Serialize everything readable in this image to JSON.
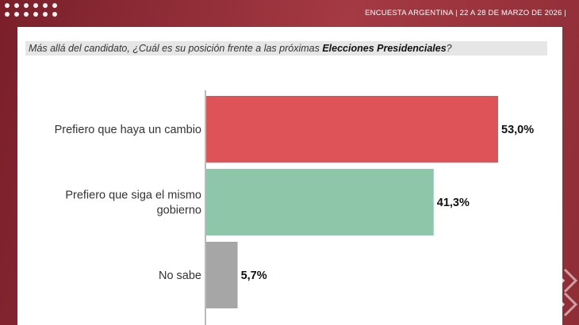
{
  "header": {
    "survey_title": "ENCUESTA ARGENTINA | 22 A 28 DE MARZO DE 2026  |"
  },
  "question": {
    "prefix": "Más allá del candidato, ¿Cuál es su posición frente a las próximas ",
    "emphasis": "Elecciones Presidenciales",
    "suffix": "?"
  },
  "colors": {
    "frame": "#8a2a33",
    "cambio": "#dd5358",
    "mismo_gobierno": "#8ec6a9",
    "no_sabe": "#a6a6a6",
    "question_bg": "#e6e6e6"
  },
  "chart_data": {
    "type": "bar",
    "orientation": "horizontal",
    "categories": [
      "Prefiero que haya un cambio",
      "Prefiero que siga el mismo gobierno",
      "No sabe"
    ],
    "values": [
      53.0,
      41.3,
      5.7
    ],
    "value_labels": [
      "53,0%",
      "41,3%",
      "5,7%"
    ],
    "title": "",
    "xlabel": "",
    "ylabel": "",
    "xlim": [
      0,
      60
    ],
    "grid": false,
    "legend": "none"
  }
}
